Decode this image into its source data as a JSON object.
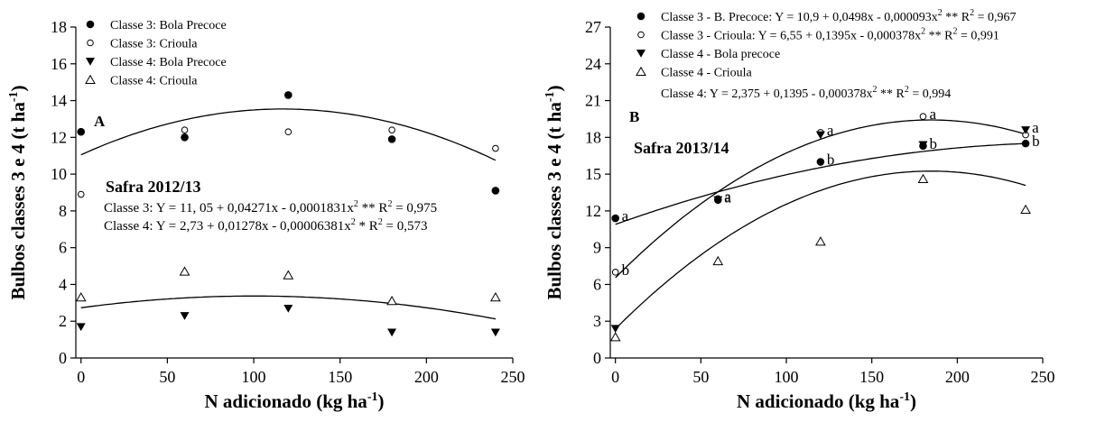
{
  "chart_data": [
    {
      "type": "scatter",
      "panel_label": "A",
      "season_label": "Safra 2012/13",
      "xlabel": "N adicionado (kg ha",
      "xlabel_sup": "-1",
      "xlabel_end": ")",
      "ylabel": "Bulbos classes 3 e 4 (t ha",
      "ylabel_sup": "-1",
      "ylabel_end": ")",
      "xlim": [
        -3,
        250
      ],
      "ylim": [
        0,
        18
      ],
      "xticks": [
        0,
        50,
        100,
        150,
        200,
        250
      ],
      "yticks": [
        0,
        2,
        4,
        6,
        8,
        10,
        12,
        14,
        16,
        18
      ],
      "legend_position": "top-left",
      "series": [
        {
          "name": "Classe 3: Bola Precoce",
          "marker": "circle-filled",
          "x": [
            0,
            60,
            120,
            180,
            240
          ],
          "y": [
            12.3,
            12.0,
            14.3,
            11.9,
            9.1
          ]
        },
        {
          "name": "Classe 3: Crioula",
          "marker": "circle-open",
          "x": [
            0,
            60,
            120,
            180,
            240
          ],
          "y": [
            8.9,
            12.4,
            12.3,
            12.4,
            11.4
          ]
        },
        {
          "name": "Classe 4: Bola Precoce",
          "marker": "triangle-down-filled",
          "x": [
            0,
            60,
            120,
            180,
            240
          ],
          "y": [
            1.7,
            2.3,
            2.7,
            1.4,
            1.4
          ]
        },
        {
          "name": "Classe 4: Crioula",
          "marker": "triangle-up-open",
          "x": [
            0,
            60,
            120,
            180,
            240
          ],
          "y": [
            3.3,
            4.7,
            4.5,
            3.1,
            3.3
          ]
        }
      ],
      "fits": [
        {
          "coef": [
            11.05,
            0.04271,
            -0.0001831
          ]
        },
        {
          "coef": [
            2.73,
            0.01278,
            -6.381e-05
          ]
        }
      ],
      "equations": [
        {
          "text": "Classe 3: Y = 11, 05 + 0,04271x - 0,0001831x",
          "sup": "2",
          "sig": " **",
          "r2_label": "R",
          "r2_sup": "2",
          "r2_value": " = 0,975"
        },
        {
          "text": "Classe 4: Y = 2,73 + 0,01278x - 0,00006381x",
          "sup": "2",
          "sig": " *",
          "r2_label": "R",
          "r2_sup": "2",
          "r2_value": " = 0,573"
        }
      ],
      "annotations": []
    },
    {
      "type": "scatter",
      "panel_label": "B",
      "season_label": "Safra 2013/14",
      "xlabel": "N adicionado (kg ha",
      "xlabel_sup": "-1",
      "xlabel_end": ")",
      "ylabel": "Bulbos classes 3 e 4 (t ha",
      "ylabel_sup": "-1",
      "ylabel_end": ")",
      "xlim": [
        -3,
        250
      ],
      "ylim": [
        0,
        27
      ],
      "xticks": [
        0,
        50,
        100,
        150,
        200,
        250
      ],
      "yticks": [
        0,
        3,
        6,
        9,
        12,
        15,
        18,
        21,
        24,
        27
      ],
      "legend_position": "top-left",
      "series": [
        {
          "name": "Classe 3 - B. Precoce: Y = 10,9 + 0,0498x - 0,000093x",
          "name_sup": "2",
          "name_tail": " ** R",
          "name_tail_sup": "2",
          "name_end": " = 0,967",
          "marker": "circle-filled",
          "x": [
            0,
            60,
            120,
            180,
            240
          ],
          "y": [
            11.4,
            12.9,
            16.0,
            17.3,
            17.5
          ]
        },
        {
          "name": "Classe 3 - Crioula: Y = 6,55 + 0,1395x - 0,000378x",
          "name_sup": "2",
          "name_tail": " ** R",
          "name_tail_sup": "2",
          "name_end": " = 0,991",
          "marker": "circle-open",
          "x": [
            0,
            60,
            120,
            180,
            240
          ],
          "y": [
            7.0,
            13.0,
            18.4,
            19.7,
            18.2
          ]
        },
        {
          "name": "Classe 4 - Bola precoce",
          "marker": "triangle-down-filled",
          "x": [
            0,
            60,
            120,
            180,
            240
          ],
          "y": [
            2.4,
            12.9,
            18.2,
            17.4,
            18.6
          ]
        },
        {
          "name": "Classe 4 - Crioula",
          "marker": "triangle-up-open",
          "x": [
            0,
            60,
            120,
            180,
            240
          ],
          "y": [
            1.7,
            7.9,
            9.5,
            14.6,
            12.1
          ]
        }
      ],
      "fits": [
        {
          "coef": [
            10.9,
            0.0498,
            -9.3e-05
          ]
        },
        {
          "coef": [
            6.55,
            0.1395,
            -0.000378
          ]
        },
        {
          "coef": [
            2.375,
            0.1395,
            -0.000378
          ]
        }
      ],
      "equations": [
        {
          "text": "Classe 4: Y = 2,375 + 0,1395 - 0,000378x",
          "sup": "2",
          "sig": " **",
          "r2_label": "R",
          "r2_sup": "2",
          "r2_value": " = 0,994"
        }
      ],
      "annotations": [
        {
          "text": "a",
          "x": 0,
          "y": 11.4
        },
        {
          "text": "b",
          "x": 0,
          "y": 7.0
        },
        {
          "text": "a",
          "x": 60,
          "y": 13.0
        },
        {
          "text": "a",
          "x": 60,
          "y": 12.9
        },
        {
          "text": "a",
          "x": 120,
          "y": 18.4
        },
        {
          "text": "b",
          "x": 120,
          "y": 16.0
        },
        {
          "text": "a",
          "x": 180,
          "y": 19.7
        },
        {
          "text": "b",
          "x": 180,
          "y": 17.3
        },
        {
          "text": "a",
          "x": 240,
          "y": 18.6
        },
        {
          "text": "b",
          "x": 240,
          "y": 17.5
        }
      ]
    }
  ]
}
